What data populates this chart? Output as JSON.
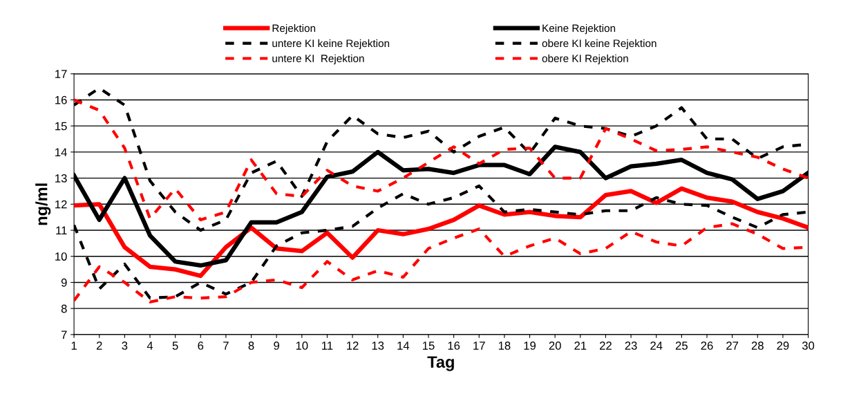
{
  "chart_data": {
    "type": "line",
    "xlabel": "Tag",
    "ylabel": "ng/ml",
    "x": [
      1,
      2,
      3,
      4,
      5,
      6,
      7,
      8,
      9,
      10,
      11,
      12,
      13,
      14,
      15,
      16,
      17,
      18,
      19,
      20,
      21,
      22,
      23,
      24,
      25,
      26,
      27,
      28,
      29,
      30
    ],
    "xlim": [
      1,
      30
    ],
    "xticks": [
      1,
      2,
      3,
      4,
      5,
      6,
      7,
      8,
      9,
      10,
      11,
      12,
      13,
      14,
      15,
      16,
      17,
      18,
      19,
      20,
      21,
      22,
      23,
      24,
      25,
      26,
      27,
      28,
      29,
      30
    ],
    "ylim": [
      7,
      17
    ],
    "yticks": [
      7,
      8,
      9,
      10,
      11,
      12,
      13,
      14,
      15,
      16,
      17
    ],
    "grid": "y",
    "legend": "top",
    "marker": "none",
    "series": [
      {
        "name": "Rejektion",
        "color": "#ff0000",
        "line_style": "solid",
        "values": [
          11.95,
          12.0,
          10.35,
          9.6,
          9.5,
          9.25,
          10.35,
          11.1,
          10.3,
          10.2,
          10.9,
          9.95,
          11.0,
          10.85,
          11.05,
          11.4,
          11.95,
          11.6,
          11.7,
          11.55,
          11.5,
          12.35,
          12.5,
          12.05,
          12.6,
          12.25,
          12.1,
          11.7,
          11.45,
          11.1
        ]
      },
      {
        "name": "Keine Rejektion",
        "color": "#000000",
        "line_style": "solid",
        "values": [
          13.1,
          11.4,
          13.0,
          10.8,
          9.8,
          9.65,
          9.85,
          11.3,
          11.3,
          11.7,
          13.05,
          13.25,
          14.0,
          13.3,
          13.35,
          13.2,
          13.5,
          13.5,
          13.15,
          14.2,
          14.0,
          13.0,
          13.45,
          13.55,
          13.7,
          13.2,
          12.95,
          12.2,
          12.5,
          13.2
        ]
      },
      {
        "name": "untere KI keine Rejektion",
        "color": "#000000",
        "line_style": "dashed",
        "values": [
          11.2,
          8.75,
          9.7,
          8.4,
          8.45,
          9.0,
          8.55,
          9.0,
          10.4,
          10.9,
          11.0,
          11.15,
          11.85,
          12.4,
          12.0,
          12.25,
          12.7,
          11.7,
          11.8,
          11.7,
          11.6,
          11.75,
          11.75,
          12.25,
          12.0,
          11.95,
          11.5,
          11.1,
          11.6,
          11.7
        ]
      },
      {
        "name": "obere KI keine Rejektion",
        "color": "#000000",
        "line_style": "dashed",
        "values": [
          15.8,
          16.45,
          15.8,
          12.9,
          11.7,
          11.0,
          11.4,
          13.2,
          13.65,
          12.3,
          14.4,
          15.4,
          14.7,
          14.55,
          14.8,
          14.0,
          14.6,
          14.95,
          13.95,
          15.3,
          15.0,
          14.9,
          14.6,
          15.0,
          15.7,
          14.5,
          14.5,
          13.75,
          14.2,
          14.3
        ]
      },
      {
        "name": "untere KI  Rejektion",
        "color": "#ff0000",
        "line_style": "dashed",
        "values": [
          8.3,
          9.6,
          9.0,
          8.25,
          8.45,
          8.4,
          8.45,
          9.0,
          9.1,
          8.8,
          9.8,
          9.1,
          9.45,
          9.2,
          10.3,
          10.7,
          11.05,
          10.0,
          10.4,
          10.7,
          10.1,
          10.3,
          10.95,
          10.55,
          10.4,
          11.1,
          11.25,
          10.85,
          10.3,
          10.35
        ]
      },
      {
        "name": "obere KI Rejektion",
        "color": "#ff0000",
        "line_style": "dashed",
        "values": [
          16.0,
          15.6,
          14.15,
          11.45,
          12.6,
          11.4,
          11.7,
          13.7,
          12.4,
          12.3,
          13.3,
          12.7,
          12.5,
          13.0,
          13.6,
          14.2,
          13.55,
          14.1,
          14.15,
          13.0,
          13.0,
          14.9,
          14.5,
          14.05,
          14.1,
          14.2,
          14.0,
          13.8,
          13.35,
          13.0
        ]
      }
    ]
  }
}
